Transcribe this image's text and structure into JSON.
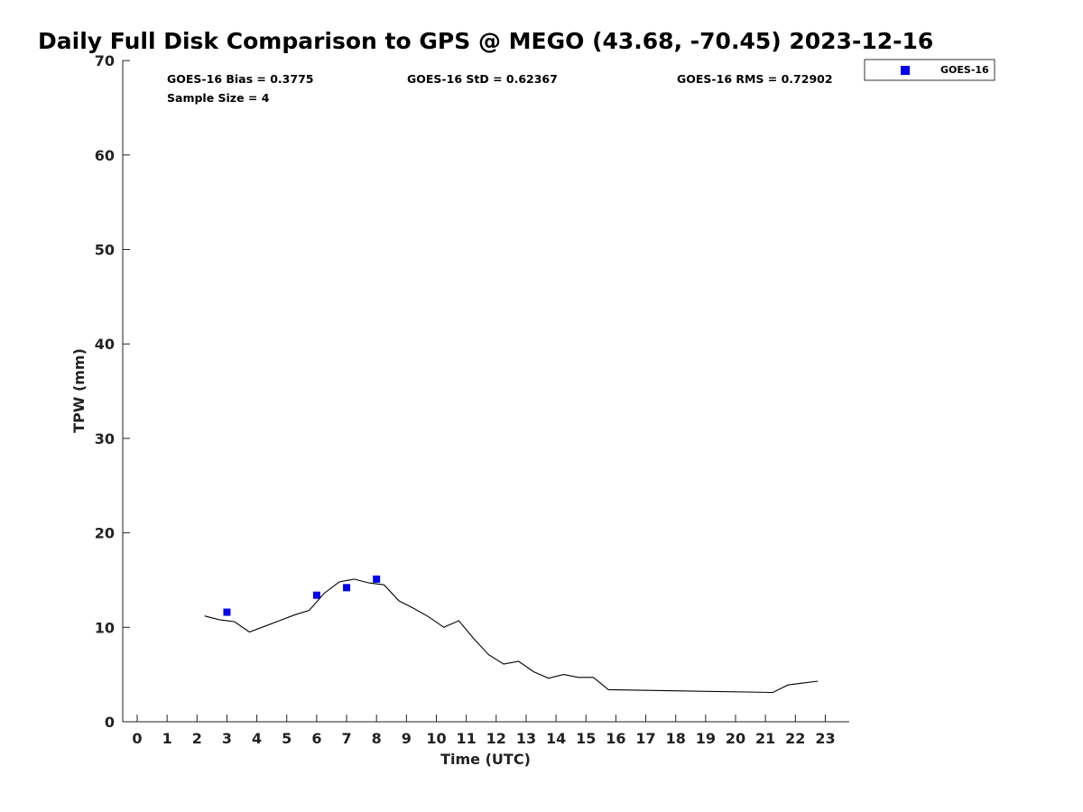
{
  "chart_data": {
    "type": "line",
    "title": "Daily Full Disk Comparison to GPS @ MEGO (43.68, -70.45) 2023-12-16",
    "xlabel": "Time (UTC)",
    "ylabel": "TPW (mm)",
    "xlim": [
      -0.5,
      23.8
    ],
    "ylim": [
      0,
      70
    ],
    "xticks": [
      "0",
      "1",
      "2",
      "3",
      "4",
      "5",
      "6",
      "7",
      "8",
      "9",
      "10",
      "11",
      "12",
      "13",
      "14",
      "15",
      "16",
      "17",
      "18",
      "19",
      "20",
      "21",
      "22",
      "23"
    ],
    "yticks": [
      "0",
      "10",
      "20",
      "30",
      "40",
      "50",
      "60",
      "70"
    ],
    "grid": false,
    "legend_position": "top-right",
    "stats": {
      "bias": "GOES-16 Bias = 0.3775",
      "std": "GOES-16 StD = 0.62367",
      "rms": "GOES-16 RMS = 0.72902",
      "sample": "Sample Size = 4"
    },
    "series": [
      {
        "kind": "line",
        "color": "#000000",
        "points": [
          [
            2.25,
            11.2
          ],
          [
            2.75,
            10.8
          ],
          [
            3.25,
            10.6
          ],
          [
            3.75,
            9.5
          ],
          [
            4.25,
            10.1
          ],
          [
            4.75,
            10.7
          ],
          [
            5.25,
            11.3
          ],
          [
            5.75,
            11.8
          ],
          [
            6.25,
            13.6
          ],
          [
            6.75,
            14.8
          ],
          [
            7.25,
            15.1
          ],
          [
            7.75,
            14.7
          ],
          [
            8.25,
            14.5
          ],
          [
            8.75,
            12.8
          ],
          [
            9.25,
            12.0
          ],
          [
            9.75,
            11.1
          ],
          [
            10.25,
            10.0
          ],
          [
            10.75,
            10.7
          ],
          [
            11.25,
            8.8
          ],
          [
            11.75,
            7.1
          ],
          [
            12.25,
            6.1
          ],
          [
            12.75,
            6.4
          ],
          [
            13.25,
            5.3
          ],
          [
            13.75,
            4.6
          ],
          [
            14.25,
            5.0
          ],
          [
            14.75,
            4.7
          ],
          [
            15.25,
            4.7
          ],
          [
            15.75,
            3.4
          ],
          [
            21.25,
            3.1
          ],
          [
            21.75,
            3.9
          ],
          [
            22.25,
            4.1
          ],
          [
            22.75,
            4.3
          ]
        ]
      },
      {
        "kind": "scatter",
        "name": "GOES-16",
        "color": "#0000ee",
        "points": [
          [
            3.0,
            11.6
          ],
          [
            6.0,
            13.4
          ],
          [
            7.0,
            14.2
          ],
          [
            8.0,
            15.1
          ]
        ]
      }
    ]
  }
}
